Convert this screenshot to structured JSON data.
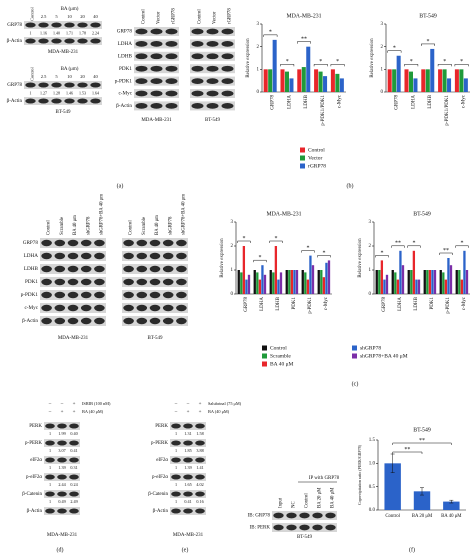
{
  "panel_a": {
    "label": "(a)",
    "dose_blots": [
      {
        "treatment": "BA (μm)",
        "lanes": [
          "Control",
          "2.5",
          "5",
          "10",
          "20",
          "40"
        ],
        "rows": [
          "GRP78",
          "β-Actin"
        ],
        "ratios": [
          "1",
          "1.16",
          "1.40",
          "1.71",
          "1.78",
          "2.24"
        ],
        "cell_line": "MDA-MB-231"
      },
      {
        "treatment": "BA (μm)",
        "lanes": [
          "Control",
          "2.5",
          "5",
          "10",
          "20",
          "40"
        ],
        "rows": [
          "GRP78",
          "β-Actin"
        ],
        "ratios": [
          "1",
          "1.27",
          "1.28",
          "1.46",
          "1.53",
          "1.64"
        ],
        "cell_line": "BT-549"
      }
    ],
    "overexpression": {
      "lanes": [
        "Control",
        "Vector",
        "rGRP78"
      ],
      "rows": [
        "GRP78",
        "LDHA",
        "LDHB",
        "PDK1",
        "p-PDK1",
        "c-Myc",
        "β-Actin"
      ],
      "cell_lines": [
        "MDA-MB-231",
        "BT-549"
      ]
    }
  },
  "panel_b": {
    "label": "(b)",
    "ylabel": "Relative expression",
    "series": [
      {
        "name": "Control",
        "color": "#e8262b"
      },
      {
        "name": "Vector",
        "color": "#1f9a3a"
      },
      {
        "name": "rGRP78",
        "color": "#2b63c9"
      }
    ],
    "charts": [
      {
        "type": "grouped-bar",
        "title": "MDA-MB-231",
        "categories": [
          "GRP78",
          "LDHA",
          "LDHB",
          "p-PDK1/PDK1",
          "c-Myc"
        ],
        "series": [
          {
            "values": [
              1,
              1,
              1,
              1,
              1
            ]
          },
          {
            "values": [
              1,
              0.9,
              1.1,
              0.9,
              0.8
            ]
          },
          {
            "values": [
              2.3,
              0.6,
              2.0,
              0.7,
              0.6
            ]
          }
        ],
        "ylim": [
          0,
          3
        ],
        "yticks": [
          0,
          1,
          2,
          3
        ],
        "significance": [
          "*",
          "*",
          "**",
          "*",
          "*"
        ]
      },
      {
        "type": "grouped-bar",
        "title": "BT-549",
        "categories": [
          "GRP78",
          "LDHA",
          "LDHB",
          "p-PDK1/PDK1",
          "c-Myc"
        ],
        "series": [
          {
            "values": [
              1,
              1,
              1,
              1,
              1
            ]
          },
          {
            "values": [
              1,
              0.9,
              1,
              1,
              1
            ]
          },
          {
            "values": [
              1.6,
              0.6,
              1.9,
              0.6,
              0.6
            ]
          }
        ],
        "ylim": [
          0,
          3
        ],
        "yticks": [
          0,
          1,
          2,
          3
        ],
        "significance": [
          "*",
          "*",
          "*",
          "*",
          "*"
        ]
      }
    ]
  },
  "panel_c": {
    "label": "(c)",
    "blots": {
      "lanes": [
        "Control",
        "Scramble",
        "BA 40 μm",
        "shGRP78",
        "shGRP78+BA 40 μm"
      ],
      "rows": [
        "GRP78",
        "LDHA",
        "LDHB",
        "PDK1",
        "p-PDK1",
        "c-Myc",
        "β-Actin"
      ],
      "cell_lines": [
        "MDA-MB-231",
        "BT-549"
      ]
    },
    "ylabel": "Relative expression",
    "series": [
      {
        "name": "Control",
        "color": "#111111"
      },
      {
        "name": "Scramble",
        "color": "#1f9a3a"
      },
      {
        "name": "BA 40 μM",
        "color": "#e8262b"
      },
      {
        "name": "shGRP78",
        "color": "#2b63c9"
      },
      {
        "name": "shGRP78+BA 40 μM",
        "color": "#7b2fa8"
      }
    ],
    "charts": [
      {
        "type": "grouped-bar",
        "title": "MDA-MB-231",
        "categories": [
          "GRP78",
          "LDHA",
          "LDHB",
          "PDK1",
          "p-PDK1",
          "c-Myc"
        ],
        "series": [
          {
            "values": [
              1,
              1,
              1,
              1,
              1,
              1
            ]
          },
          {
            "values": [
              0.9,
              0.9,
              0.9,
              1,
              0.9,
              1
            ]
          },
          {
            "values": [
              2.0,
              0.6,
              2.0,
              1,
              0.6,
              0.7
            ]
          },
          {
            "values": [
              0.6,
              1.2,
              0.6,
              1,
              1.6,
              1.3
            ]
          },
          {
            "values": [
              0.8,
              0.8,
              0.9,
              1,
              1.2,
              1.4
            ]
          }
        ],
        "ylim": [
          0,
          3
        ],
        "yticks": [
          0,
          1,
          2,
          3
        ],
        "significance": [
          "*",
          "*",
          "*",
          null,
          "*",
          "*"
        ]
      },
      {
        "type": "grouped-bar",
        "title": "BT-549",
        "categories": [
          "GRP78",
          "LDHA",
          "LDHB",
          "PDK1",
          "p-PDK1",
          "c-Myc"
        ],
        "series": [
          {
            "values": [
              1,
              1,
              1,
              1,
              1,
              1
            ]
          },
          {
            "values": [
              1,
              0.9,
              1,
              1,
              0.9,
              1
            ]
          },
          {
            "values": [
              1.4,
              0.6,
              1.8,
              1,
              0.6,
              0.6
            ]
          },
          {
            "values": [
              0.6,
              1.8,
              0.6,
              1,
              1.5,
              1.8
            ]
          },
          {
            "values": [
              0.8,
              1.2,
              0.6,
              1,
              1.2,
              1.0
            ]
          }
        ],
        "ylim": [
          0,
          3
        ],
        "yticks": [
          0,
          1,
          2,
          3
        ],
        "significance": [
          "*",
          "**",
          "*",
          null,
          "**",
          "*"
        ]
      }
    ]
  },
  "panel_d": {
    "label": "(d)",
    "treatments": [
      {
        "name": "ISRIB (100 nM)",
        "signs": [
          "–",
          "–",
          "+"
        ]
      },
      {
        "name": "BA (40 μM)",
        "signs": [
          "–",
          "+",
          "+"
        ]
      }
    ],
    "rows": [
      "PERK",
      "p-PERK",
      "eIF2α",
      "p-eIF2α",
      "β-Catenin",
      "β-Actin"
    ],
    "ratios": [
      [
        "1",
        "1.99",
        "0.40"
      ],
      [
        "1",
        "3.07",
        "0.41"
      ],
      [
        "1",
        "1.39",
        "0.31"
      ],
      [
        "1",
        "2.44",
        "0.24"
      ],
      [
        "1",
        "0.49",
        "2.49"
      ]
    ],
    "cell_line": "MDA-MB-231"
  },
  "panel_e": {
    "label": "(e)",
    "treatments": [
      {
        "name": "Salubrinal (75 μM)",
        "signs": [
          "–",
          "–",
          "+"
        ]
      },
      {
        "name": "BA (40 μM)",
        "signs": [
          "–",
          "+",
          "+"
        ]
      }
    ],
    "rows": [
      "PERK",
      "p-PERK",
      "eIF2α",
      "p-eIF2α",
      "β-Catenin",
      "β-Actin"
    ],
    "ratios": [
      [
        "1",
        "1.31",
        "1.58"
      ],
      [
        "1",
        "1.85",
        "3.88"
      ],
      [
        "1",
        "1.39",
        "1.41"
      ],
      [
        "1",
        "1.65",
        "4.02"
      ],
      [
        "1",
        "0.41",
        "0.16"
      ]
    ],
    "cell_line": "MDA-MB-231"
  },
  "panel_f": {
    "label": "(f)",
    "blot": {
      "header": "IP with GRP78",
      "lanes": [
        "Input",
        "NC",
        "Control",
        "BA 20 μM",
        "BA 40 μM"
      ],
      "rows": [
        "IB: GRP78",
        "IB: PERK"
      ],
      "cell_line": "BT-549"
    },
    "chart": {
      "type": "bar",
      "title": "BT-549",
      "ylabel": "Coprecipitation ratio (PERK/GRP78)",
      "categories": [
        "Control",
        "BA 20 μM",
        "BA 40 μM"
      ],
      "values": [
        1,
        0.4,
        0.18
      ],
      "errors": [
        0.2,
        0.08,
        0.03
      ],
      "color": "#2b63c9",
      "ylim": [
        0,
        1.5
      ],
      "yticks": [
        {
          "value": 0,
          "label": "0.0"
        },
        0.5,
        {
          "value": 1,
          "label": "1.0"
        },
        1.5
      ],
      "significance": [
        "**",
        "**"
      ]
    }
  }
}
